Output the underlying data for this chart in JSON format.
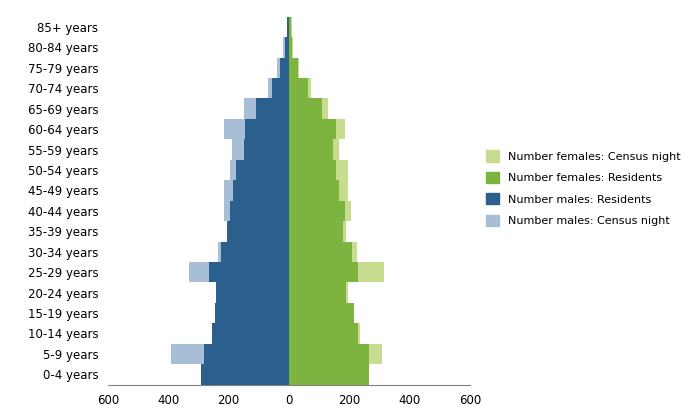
{
  "age_groups": [
    "0-4 years",
    "5-9 years",
    "10-14 years",
    "15-19 years",
    "20-24 years",
    "25-29 years",
    "30-34 years",
    "35-39 years",
    "40-44 years",
    "45-49 years",
    "50-54 years",
    "55-59 years",
    "60-64 years",
    "65-69 years",
    "70-74 years",
    "75-79 years",
    "80-84 years",
    "85+ years"
  ],
  "males_residents": [
    290,
    280,
    255,
    245,
    240,
    265,
    225,
    205,
    195,
    185,
    175,
    150,
    145,
    110,
    55,
    30,
    12,
    5
  ],
  "males_census_night": [
    290,
    390,
    255,
    245,
    240,
    330,
    235,
    205,
    215,
    215,
    195,
    190,
    215,
    150,
    70,
    38,
    18,
    5
  ],
  "females_residents": [
    265,
    265,
    230,
    215,
    190,
    230,
    210,
    180,
    185,
    165,
    155,
    145,
    155,
    110,
    65,
    30,
    12,
    7
  ],
  "females_census_night": [
    265,
    310,
    235,
    215,
    195,
    315,
    225,
    190,
    205,
    195,
    195,
    165,
    185,
    130,
    75,
    35,
    15,
    9
  ],
  "color_males_residents": "#2B5F8E",
  "color_males_census_night": "#A8BED6",
  "color_females_residents": "#7DB33F",
  "color_females_census_night": "#C8DC90",
  "xlim": 600,
  "xticks": [
    -600,
    -400,
    -200,
    0,
    200,
    400,
    600
  ],
  "legend_labels": [
    "Number females: Census night",
    "Number females: Residents",
    "Number males: Residents",
    "Number males: Census night"
  ]
}
